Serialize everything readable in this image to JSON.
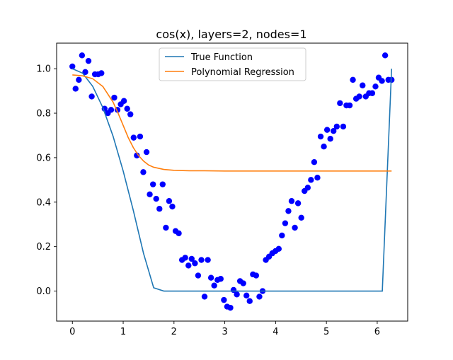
{
  "chart_data": {
    "type": "line",
    "title": "cos(x), layers=2, nodes=1",
    "xlabel": "",
    "ylabel": "",
    "xlim": [
      -0.31,
      6.6
    ],
    "ylim": [
      -0.135,
      1.115
    ],
    "x_ticks": [
      0,
      1,
      2,
      3,
      4,
      5,
      6
    ],
    "y_ticks": [
      0.0,
      0.2,
      0.4,
      0.6,
      0.8,
      1.0
    ],
    "x_tick_labels": [
      "0",
      "1",
      "2",
      "3",
      "4",
      "5",
      "6"
    ],
    "y_tick_labels": [
      "0.0",
      "0.2",
      "0.4",
      "0.6",
      "0.8",
      "1.0"
    ],
    "grid": false,
    "legend_position": "top-center",
    "series": [
      {
        "name": "True Function",
        "kind": "line",
        "color": "#1f77b4",
        "x": [
          0,
          0.2,
          0.4,
          0.6,
          0.8,
          1.0,
          1.2,
          1.4,
          1.6,
          1.8,
          2.0,
          2.2,
          2.4,
          2.6,
          2.8,
          3.0,
          3.1416,
          3.3,
          3.5,
          3.7,
          3.9,
          4.1,
          4.3,
          4.5,
          4.7,
          4.9,
          5.1,
          5.3,
          5.5,
          5.7,
          5.9,
          6.1,
          6.2832
        ],
        "y": [
          1.0,
          0.98,
          0.921,
          0.825,
          0.697,
          0.54,
          0.362,
          0.17,
          0.015,
          0.0,
          0.0,
          0.0,
          0.0,
          0.0,
          0.0,
          0.0,
          0.0,
          0.0,
          0.0,
          0.0,
          0.0,
          0.0,
          0.0,
          0.0,
          0.0,
          0.0,
          0.0,
          0.0,
          0.0,
          0.0,
          0.0,
          0.0,
          1.0
        ]
      },
      {
        "name": "Polynomial Regression",
        "kind": "line",
        "color": "#ff7f0e",
        "x": [
          0,
          0.2,
          0.4,
          0.6,
          0.8,
          0.9,
          1.0,
          1.1,
          1.2,
          1.3,
          1.4,
          1.5,
          1.6,
          1.8,
          2.0,
          2.3,
          2.6,
          3.0,
          3.5,
          4.0,
          4.5,
          5.0,
          5.5,
          6.0,
          6.2832
        ],
        "y": [
          0.972,
          0.968,
          0.955,
          0.92,
          0.85,
          0.8,
          0.745,
          0.69,
          0.645,
          0.61,
          0.585,
          0.567,
          0.557,
          0.547,
          0.543,
          0.541,
          0.541,
          0.54,
          0.54,
          0.54,
          0.54,
          0.54,
          0.54,
          0.54,
          0.54
        ]
      },
      {
        "name": "",
        "kind": "scatter",
        "color": "#0000ff",
        "x": [
          0.0,
          0.063,
          0.127,
          0.19,
          0.254,
          0.317,
          0.381,
          0.444,
          0.508,
          0.571,
          0.635,
          0.698,
          0.762,
          0.825,
          0.888,
          0.952,
          1.015,
          1.079,
          1.142,
          1.206,
          1.269,
          1.333,
          1.396,
          1.46,
          1.523,
          1.587,
          1.65,
          1.714,
          1.777,
          1.841,
          1.904,
          1.967,
          2.031,
          2.094,
          2.158,
          2.221,
          2.285,
          2.348,
          2.412,
          2.475,
          2.539,
          2.602,
          2.666,
          2.729,
          2.792,
          2.856,
          2.919,
          2.983,
          3.046,
          3.11,
          3.173,
          3.237,
          3.3,
          3.364,
          3.427,
          3.49,
          3.554,
          3.617,
          3.681,
          3.744,
          3.808,
          3.871,
          3.935,
          3.998,
          4.062,
          4.125,
          4.189,
          4.252,
          4.315,
          4.379,
          4.442,
          4.506,
          4.569,
          4.633,
          4.696,
          4.76,
          4.823,
          4.887,
          4.95,
          5.014,
          5.077,
          5.14,
          5.204,
          5.267,
          5.331,
          5.394,
          5.458,
          5.521,
          5.585,
          5.648,
          5.712,
          5.775,
          5.839,
          5.902,
          5.966,
          6.029,
          6.093,
          6.156,
          6.22,
          6.283
        ],
        "y": [
          1.01,
          0.91,
          0.95,
          1.06,
          0.985,
          1.035,
          0.875,
          0.975,
          0.975,
          0.98,
          0.82,
          0.8,
          0.815,
          0.87,
          0.815,
          0.84,
          0.855,
          0.82,
          0.795,
          0.69,
          0.61,
          0.695,
          0.535,
          0.625,
          0.435,
          0.48,
          0.415,
          0.37,
          0.48,
          0.285,
          0.405,
          0.38,
          0.27,
          0.26,
          0.14,
          0.15,
          0.115,
          0.145,
          0.125,
          0.07,
          0.14,
          -0.025,
          0.14,
          0.06,
          0.025,
          0.05,
          0.055,
          -0.04,
          -0.07,
          -0.075,
          0.005,
          -0.015,
          0.045,
          0.035,
          -0.02,
          -0.045,
          0.075,
          0.07,
          -0.025,
          0.0,
          0.14,
          0.155,
          0.17,
          0.18,
          0.19,
          0.25,
          0.305,
          0.36,
          0.405,
          0.285,
          0.395,
          0.33,
          0.45,
          0.465,
          0.5,
          0.58,
          0.51,
          0.695,
          0.65,
          0.725,
          0.685,
          0.72,
          0.74,
          0.845,
          0.74,
          0.835,
          0.835,
          0.95,
          0.865,
          0.875,
          0.925,
          0.875,
          0.89,
          0.89,
          0.92,
          0.96,
          0.945,
          1.06,
          0.95,
          0.95
        ]
      }
    ]
  }
}
